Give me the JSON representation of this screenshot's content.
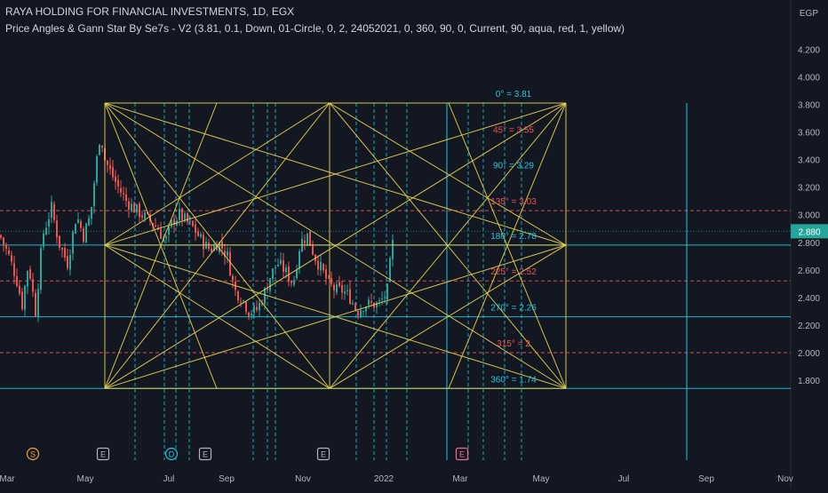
{
  "header": {
    "title": "RAYA HOLDING FOR FINANCIAL INVESTMENTS, 1D, EGX",
    "indicator": "Price Angles & Gann Star By Se7s - V2 (3.81, 0.1, Down, 01-Circle, 0, 2, 24052021, 0, 360, 90, 0, Current, 90, aqua, red, 1, yellow)"
  },
  "chart_data": {
    "type": "candlestick",
    "currency": "EGP",
    "ylim": [
      1.74,
      4.3
    ],
    "y_ticks": [
      1.8,
      2.0,
      2.2,
      2.4,
      2.6,
      2.8,
      3.0,
      3.2,
      3.4,
      3.6,
      3.8,
      4.0,
      4.2
    ],
    "y_tick_labels": [
      "1.800",
      "2.000",
      "2.200",
      "2.400",
      "2.600",
      "2.800",
      "3.000",
      "3.200",
      "3.400",
      "3.600",
      "3.800",
      "4.000",
      "4.200"
    ],
    "x_labels": [
      "Mar",
      "May",
      "Jul",
      "Sep",
      "Nov",
      "2022",
      "Mar",
      "May",
      "Jul",
      "Sep",
      "Nov"
    ],
    "last_price": 2.88,
    "last_price_label": "2.880",
    "price_path": [
      [
        0,
        2.85
      ],
      [
        10,
        2.7
      ],
      [
        18,
        2.55
      ],
      [
        25,
        2.35
      ],
      [
        32,
        2.65
      ],
      [
        40,
        2.3
      ],
      [
        48,
        2.85
      ],
      [
        58,
        3.05
      ],
      [
        66,
        2.8
      ],
      [
        76,
        2.65
      ],
      [
        86,
        3.0
      ],
      [
        94,
        2.85
      ],
      [
        102,
        3.0
      ],
      [
        108,
        3.35
      ],
      [
        113,
        3.6
      ],
      [
        118,
        3.4
      ],
      [
        125,
        3.3
      ],
      [
        133,
        3.2
      ],
      [
        142,
        3.1
      ],
      [
        150,
        3.05
      ],
      [
        160,
        3.0
      ],
      [
        170,
        2.95
      ],
      [
        178,
        2.9
      ],
      [
        186,
        2.8
      ],
      [
        194,
        2.95
      ],
      [
        202,
        3.0
      ],
      [
        210,
        2.95
      ],
      [
        218,
        2.9
      ],
      [
        228,
        2.8
      ],
      [
        236,
        2.75
      ],
      [
        246,
        2.8
      ],
      [
        256,
        2.7
      ],
      [
        264,
        2.45
      ],
      [
        272,
        2.4
      ],
      [
        280,
        2.3
      ],
      [
        288,
        2.3
      ],
      [
        296,
        2.4
      ],
      [
        304,
        2.55
      ],
      [
        312,
        2.65
      ],
      [
        320,
        2.6
      ],
      [
        330,
        2.5
      ],
      [
        338,
        2.8
      ],
      [
        346,
        2.85
      ],
      [
        354,
        2.7
      ],
      [
        362,
        2.6
      ],
      [
        370,
        2.5
      ],
      [
        378,
        2.45
      ],
      [
        386,
        2.45
      ],
      [
        394,
        2.4
      ],
      [
        402,
        2.3
      ],
      [
        410,
        2.35
      ],
      [
        418,
        2.35
      ],
      [
        426,
        2.35
      ],
      [
        432,
        2.4
      ],
      [
        436,
        2.45
      ],
      [
        440,
        2.7
      ],
      [
        444,
        2.88
      ]
    ],
    "gann": {
      "origin_date": "24052021",
      "levels": [
        {
          "label": "0° = 3.81",
          "value": 3.81,
          "color": "#26c6da",
          "style": "none"
        },
        {
          "label": "45° = 3.55",
          "value": 3.55,
          "color": "#ef5350",
          "style": "none"
        },
        {
          "label": "90° = 3.29",
          "value": 3.29,
          "color": "#26c6da",
          "style": "none"
        },
        {
          "label": "135° = 3.03",
          "value": 3.03,
          "color": "#ef5350",
          "style": "dashed"
        },
        {
          "label": "180° = 2.78",
          "value": 2.78,
          "color": "#26c6da",
          "style": "solid"
        },
        {
          "label": "225° = 2.52",
          "value": 2.52,
          "color": "#ef5350",
          "style": "dashed"
        },
        {
          "label": "270° = 2.26",
          "value": 2.26,
          "color": "#26c6da",
          "style": "solid"
        },
        {
          "label": "315° = 2",
          "value": 2.0,
          "color": "#ef5350",
          "style": "dashed"
        },
        {
          "label": "360° = 1.74",
          "value": 1.74,
          "color": "#26c6da",
          "style": "solid"
        }
      ],
      "star_color": "#e8d44d"
    },
    "event_badges": [
      {
        "label": "S",
        "kind": "circle",
        "color": "#f2a33a"
      },
      {
        "label": "E",
        "kind": "square",
        "color": "#b2b5be"
      },
      {
        "label": "D",
        "kind": "circle",
        "color": "#26c6da"
      },
      {
        "label": "E",
        "kind": "square",
        "color": "#b2b5be"
      },
      {
        "label": "E",
        "kind": "square",
        "color": "#b2b5be"
      },
      {
        "label": "E",
        "kind": "square",
        "color": "#ec6b8d"
      }
    ]
  }
}
